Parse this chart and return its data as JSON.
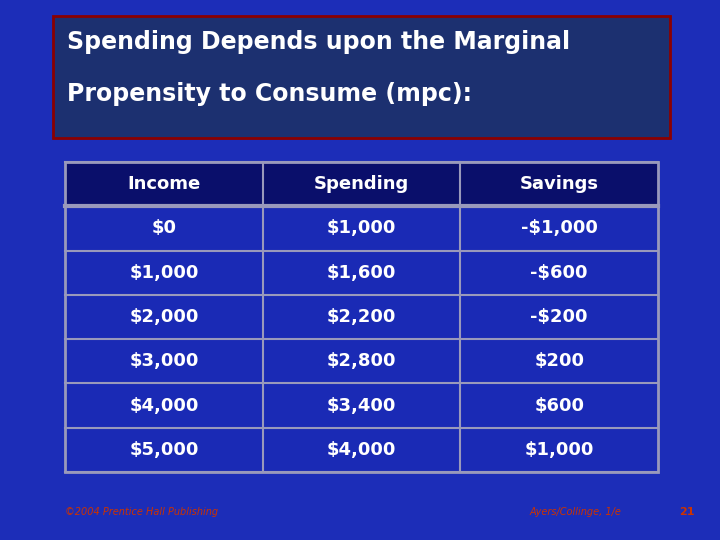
{
  "title_line1": "Spending Depends upon the Marginal",
  "title_line2": "Propensity to Consume (mpc):",
  "bg_color": "#1c2db8",
  "title_box_bg": "#1c3070",
  "title_box_border": "#8b0000",
  "table_headers": [
    "Income",
    "Spending",
    "Savings"
  ],
  "table_data": [
    [
      "$0",
      "$1,000",
      "-$1,000"
    ],
    [
      "$1,000",
      "$1,600",
      "-$600"
    ],
    [
      "$2,000",
      "$2,200",
      "-$200"
    ],
    [
      "$3,000",
      "$2,800",
      "$200"
    ],
    [
      "$4,000",
      "$3,400",
      "$600"
    ],
    [
      "$5,000",
      "$4,000",
      "$1,000"
    ]
  ],
  "table_border_color": "#9999bb",
  "table_header_bg": "#0a0f6b",
  "table_row_bg_light": "#1a2ab5",
  "table_row_bg_dark": "#1530c0",
  "text_color": "#ffffff",
  "footer_left": "©2004 Prentice Hall Publishing",
  "footer_right": "Ayers/Collinge, 1/e",
  "footer_number": "21",
  "footer_color": "#cc3300",
  "title_fontsize": 17,
  "header_fontsize": 13,
  "cell_fontsize": 13,
  "footer_fontsize": 7
}
